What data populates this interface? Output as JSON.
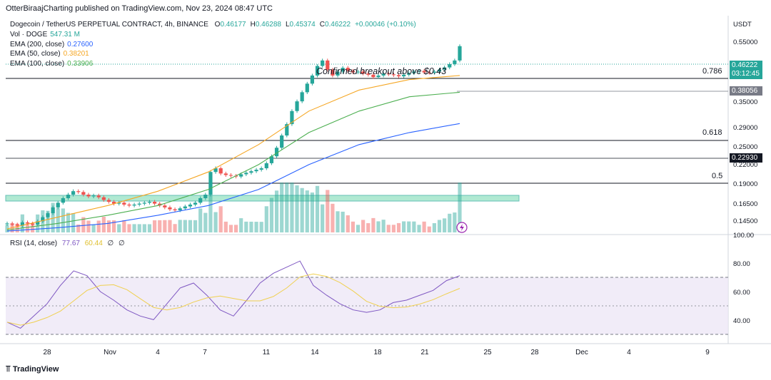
{
  "header": {
    "published": "OtterBiraajCharting published on TradingView.com, Nov 23, 2024 08:47 UTC"
  },
  "legend": {
    "symbol": "Dogecoin / TetherUS PERPETUAL CONTRACT, 4h, BINANCE",
    "ohlc": [
      {
        "k": "O",
        "v": "0.46177"
      },
      {
        "k": "H",
        "v": "0.46288"
      },
      {
        "k": "L",
        "v": "0.45374"
      },
      {
        "k": "C",
        "v": "0.46222"
      },
      {
        "k": "",
        "v": "+0.00046 (+0.10%)"
      }
    ],
    "vol_label": "Vol · DOGE",
    "vol_value": "547.31 M",
    "ema200_label": "EMA (200, close)",
    "ema200_value": "0.27600",
    "ema50_label": "EMA (50, close)",
    "ema50_value": "0.38201",
    "ema100_label": "EMA (100, close)",
    "ema100_value": "0.33906"
  },
  "price_scale": {
    "currency": "USDT",
    "ticks": [
      "0.55000",
      "0.35000",
      "0.29000",
      "0.25000",
      "0.22000",
      "0.19000",
      "0.16500",
      "0.14500"
    ],
    "last_price": "0.46222",
    "countdown": "03:12:45",
    "marker1": "0.38056",
    "marker2": "0.22930"
  },
  "rsi": {
    "label": "RSI (14, close)",
    "value1": "77.67",
    "value2": "60.44",
    "extra1": "∅",
    "extra2": "∅",
    "ticks": [
      "100.00",
      "80.00",
      "60.00",
      "40.00"
    ]
  },
  "annotations": {
    "breakout": "Confirmed breakout above $0.43",
    "fib_786": "0.786",
    "fib_618": "0.618",
    "fib_05": "0.5"
  },
  "time_axis": [
    "28",
    "Nov",
    "4",
    "7",
    "11",
    "14",
    "18",
    "21",
    "25",
    "28",
    "Dec",
    "4",
    "9"
  ],
  "watermark": "TradingView",
  "colors": {
    "up": "#26a69a",
    "down": "#ef5350",
    "ema50": "#f5a623",
    "ema100": "#4caf50",
    "ema200": "#2962ff",
    "rsi": "#7e57c2",
    "rsi_ma": "#f0d050",
    "zone": "#8fe0c0"
  },
  "chart_data": {
    "type": "candlestick",
    "timeframe": "4h",
    "close_series_approx": [
      0.142,
      0.141,
      0.14,
      0.143,
      0.142,
      0.141,
      0.144,
      0.148,
      0.152,
      0.158,
      0.163,
      0.168,
      0.172,
      0.176,
      0.175,
      0.172,
      0.17,
      0.171,
      0.169,
      0.166,
      0.164,
      0.162,
      0.163,
      0.161,
      0.16,
      0.161,
      0.162,
      0.163,
      0.164,
      0.162,
      0.16,
      0.158,
      0.156,
      0.155,
      0.157,
      0.159,
      0.161,
      0.163,
      0.168,
      0.172,
      0.2,
      0.205,
      0.198,
      0.196,
      0.195,
      0.194,
      0.197,
      0.199,
      0.201,
      0.203,
      0.205,
      0.212,
      0.222,
      0.235,
      0.255,
      0.275,
      0.3,
      0.32,
      0.34,
      0.36,
      0.38,
      0.405,
      0.42,
      0.395,
      0.38,
      0.39,
      0.4,
      0.392,
      0.388,
      0.39,
      0.385,
      0.382,
      0.376,
      0.38,
      0.385,
      0.383,
      0.381,
      0.378,
      0.382,
      0.386,
      0.39,
      0.392,
      0.388,
      0.387,
      0.39,
      0.395,
      0.401,
      0.41,
      0.42,
      0.462
    ],
    "ema50_approx": [
      0.137,
      0.148,
      0.16,
      0.176,
      0.2,
      0.24,
      0.3,
      0.345,
      0.37,
      0.38
    ],
    "ema100_approx": [
      0.136,
      0.142,
      0.15,
      0.16,
      0.178,
      0.21,
      0.26,
      0.3,
      0.33,
      0.34
    ],
    "ema200_approx": [
      0.135,
      0.138,
      0.142,
      0.15,
      0.16,
      0.178,
      0.21,
      0.24,
      0.26,
      0.276
    ],
    "fib_levels": {
      "0.786": 0.43,
      "0.618": 0.265,
      "0.5": 0.19
    },
    "support_zone": [
      0.165,
      0.172
    ],
    "rsi_approx": [
      40,
      35,
      45,
      55,
      70,
      82,
      78,
      65,
      58,
      50,
      45,
      42,
      55,
      68,
      72,
      62,
      50,
      45,
      58,
      72,
      80,
      85,
      90,
      70,
      62,
      55,
      50,
      48,
      50,
      56,
      58,
      62,
      66,
      74,
      78
    ],
    "rsi_ylim": [
      30,
      100
    ]
  }
}
